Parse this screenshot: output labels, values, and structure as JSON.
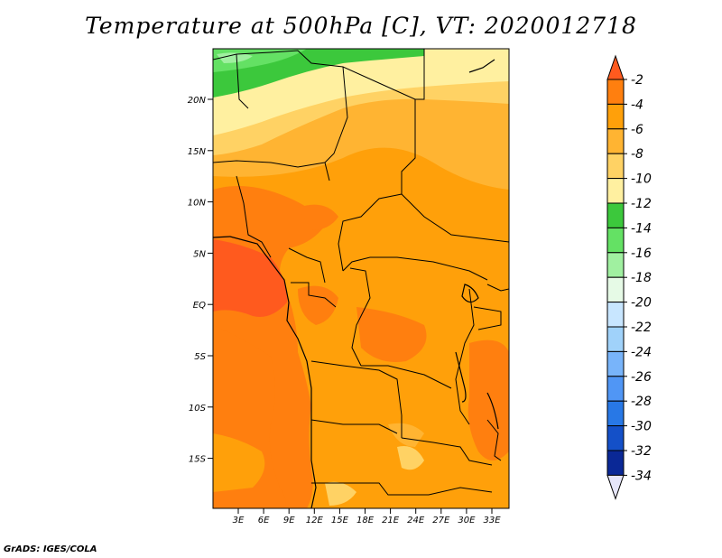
{
  "title": "Temperature at 500hPa [C], VT: 2020012718",
  "footer": "GrADS: IGES/COLA",
  "map": {
    "lat_labels": [
      "20N",
      "15N",
      "10N",
      "5N",
      "EQ",
      "5S",
      "10S",
      "15S"
    ],
    "lon_labels": [
      "3E",
      "6E",
      "9E",
      "12E",
      "15E",
      "18E",
      "21E",
      "24E",
      "27E",
      "30E",
      "33E"
    ]
  },
  "colorbar": {
    "levels": [
      "-2",
      "-4",
      "-6",
      "-8",
      "-10",
      "-12",
      "-14",
      "-16",
      "-18",
      "-20",
      "-22",
      "-24",
      "-26",
      "-28",
      "-30",
      "-32",
      "-34"
    ],
    "colors": [
      "#ff5a1e",
      "#ff7f0f",
      "#ffa00a",
      "#ffb432",
      "#ffd264",
      "#fff0a0",
      "#3cc83c",
      "#64e164",
      "#a0f0a0",
      "#e6fae6",
      "#c8e6ff",
      "#a0d2fa",
      "#78b4fa",
      "#5096f5",
      "#2878e6",
      "#1450c8",
      "#0a2896",
      "#e6e6fa"
    ]
  }
}
